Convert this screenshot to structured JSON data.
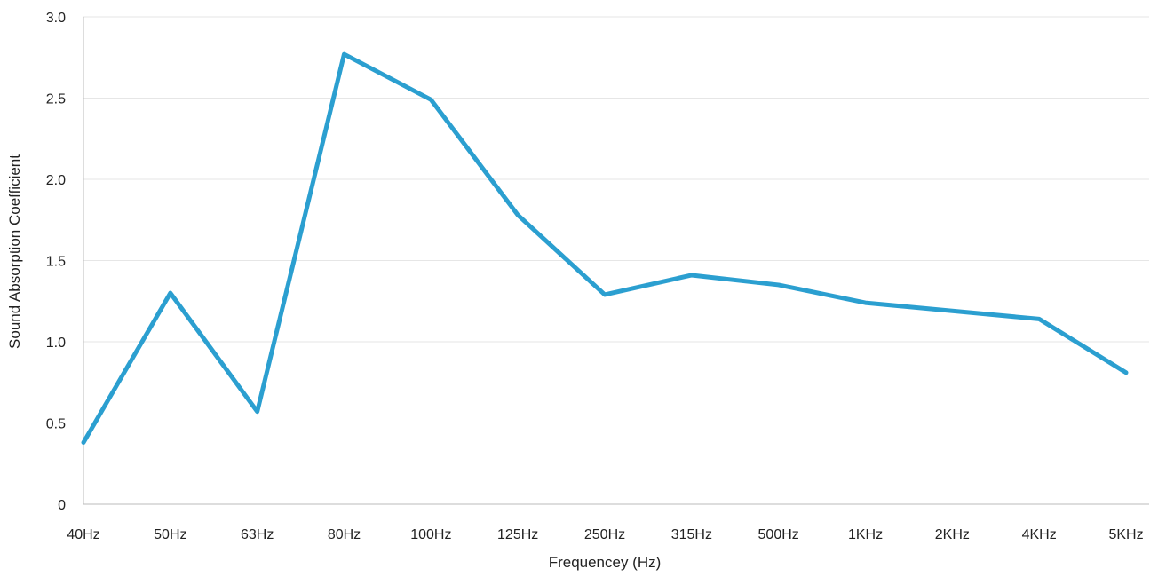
{
  "chart_data": {
    "type": "line",
    "title": "",
    "xlabel": "Frequencey (Hz)",
    "ylabel": "Sound Absorption Coefficient",
    "categories": [
      "40Hz",
      "50Hz",
      "63Hz",
      "80Hz",
      "100Hz",
      "125Hz",
      "250Hz",
      "315Hz",
      "500Hz",
      "1KHz",
      "2KHz",
      "4KHz",
      "5KHz"
    ],
    "series": [
      {
        "values": [
          0.38,
          1.3,
          0.57,
          2.77,
          2.49,
          1.78,
          1.29,
          1.41,
          1.35,
          1.24,
          1.19,
          1.14,
          0.81
        ]
      }
    ],
    "ylim": [
      0,
      3.0
    ],
    "yticks": [
      "0",
      "0.5",
      "1.0",
      "1.5",
      "2.0",
      "2.5",
      "3.0"
    ],
    "grid": true,
    "legend": "none",
    "line_color": "#2b9fd0",
    "grid_color": "#e6e6e6",
    "axis_color": "#bbbbbb"
  }
}
